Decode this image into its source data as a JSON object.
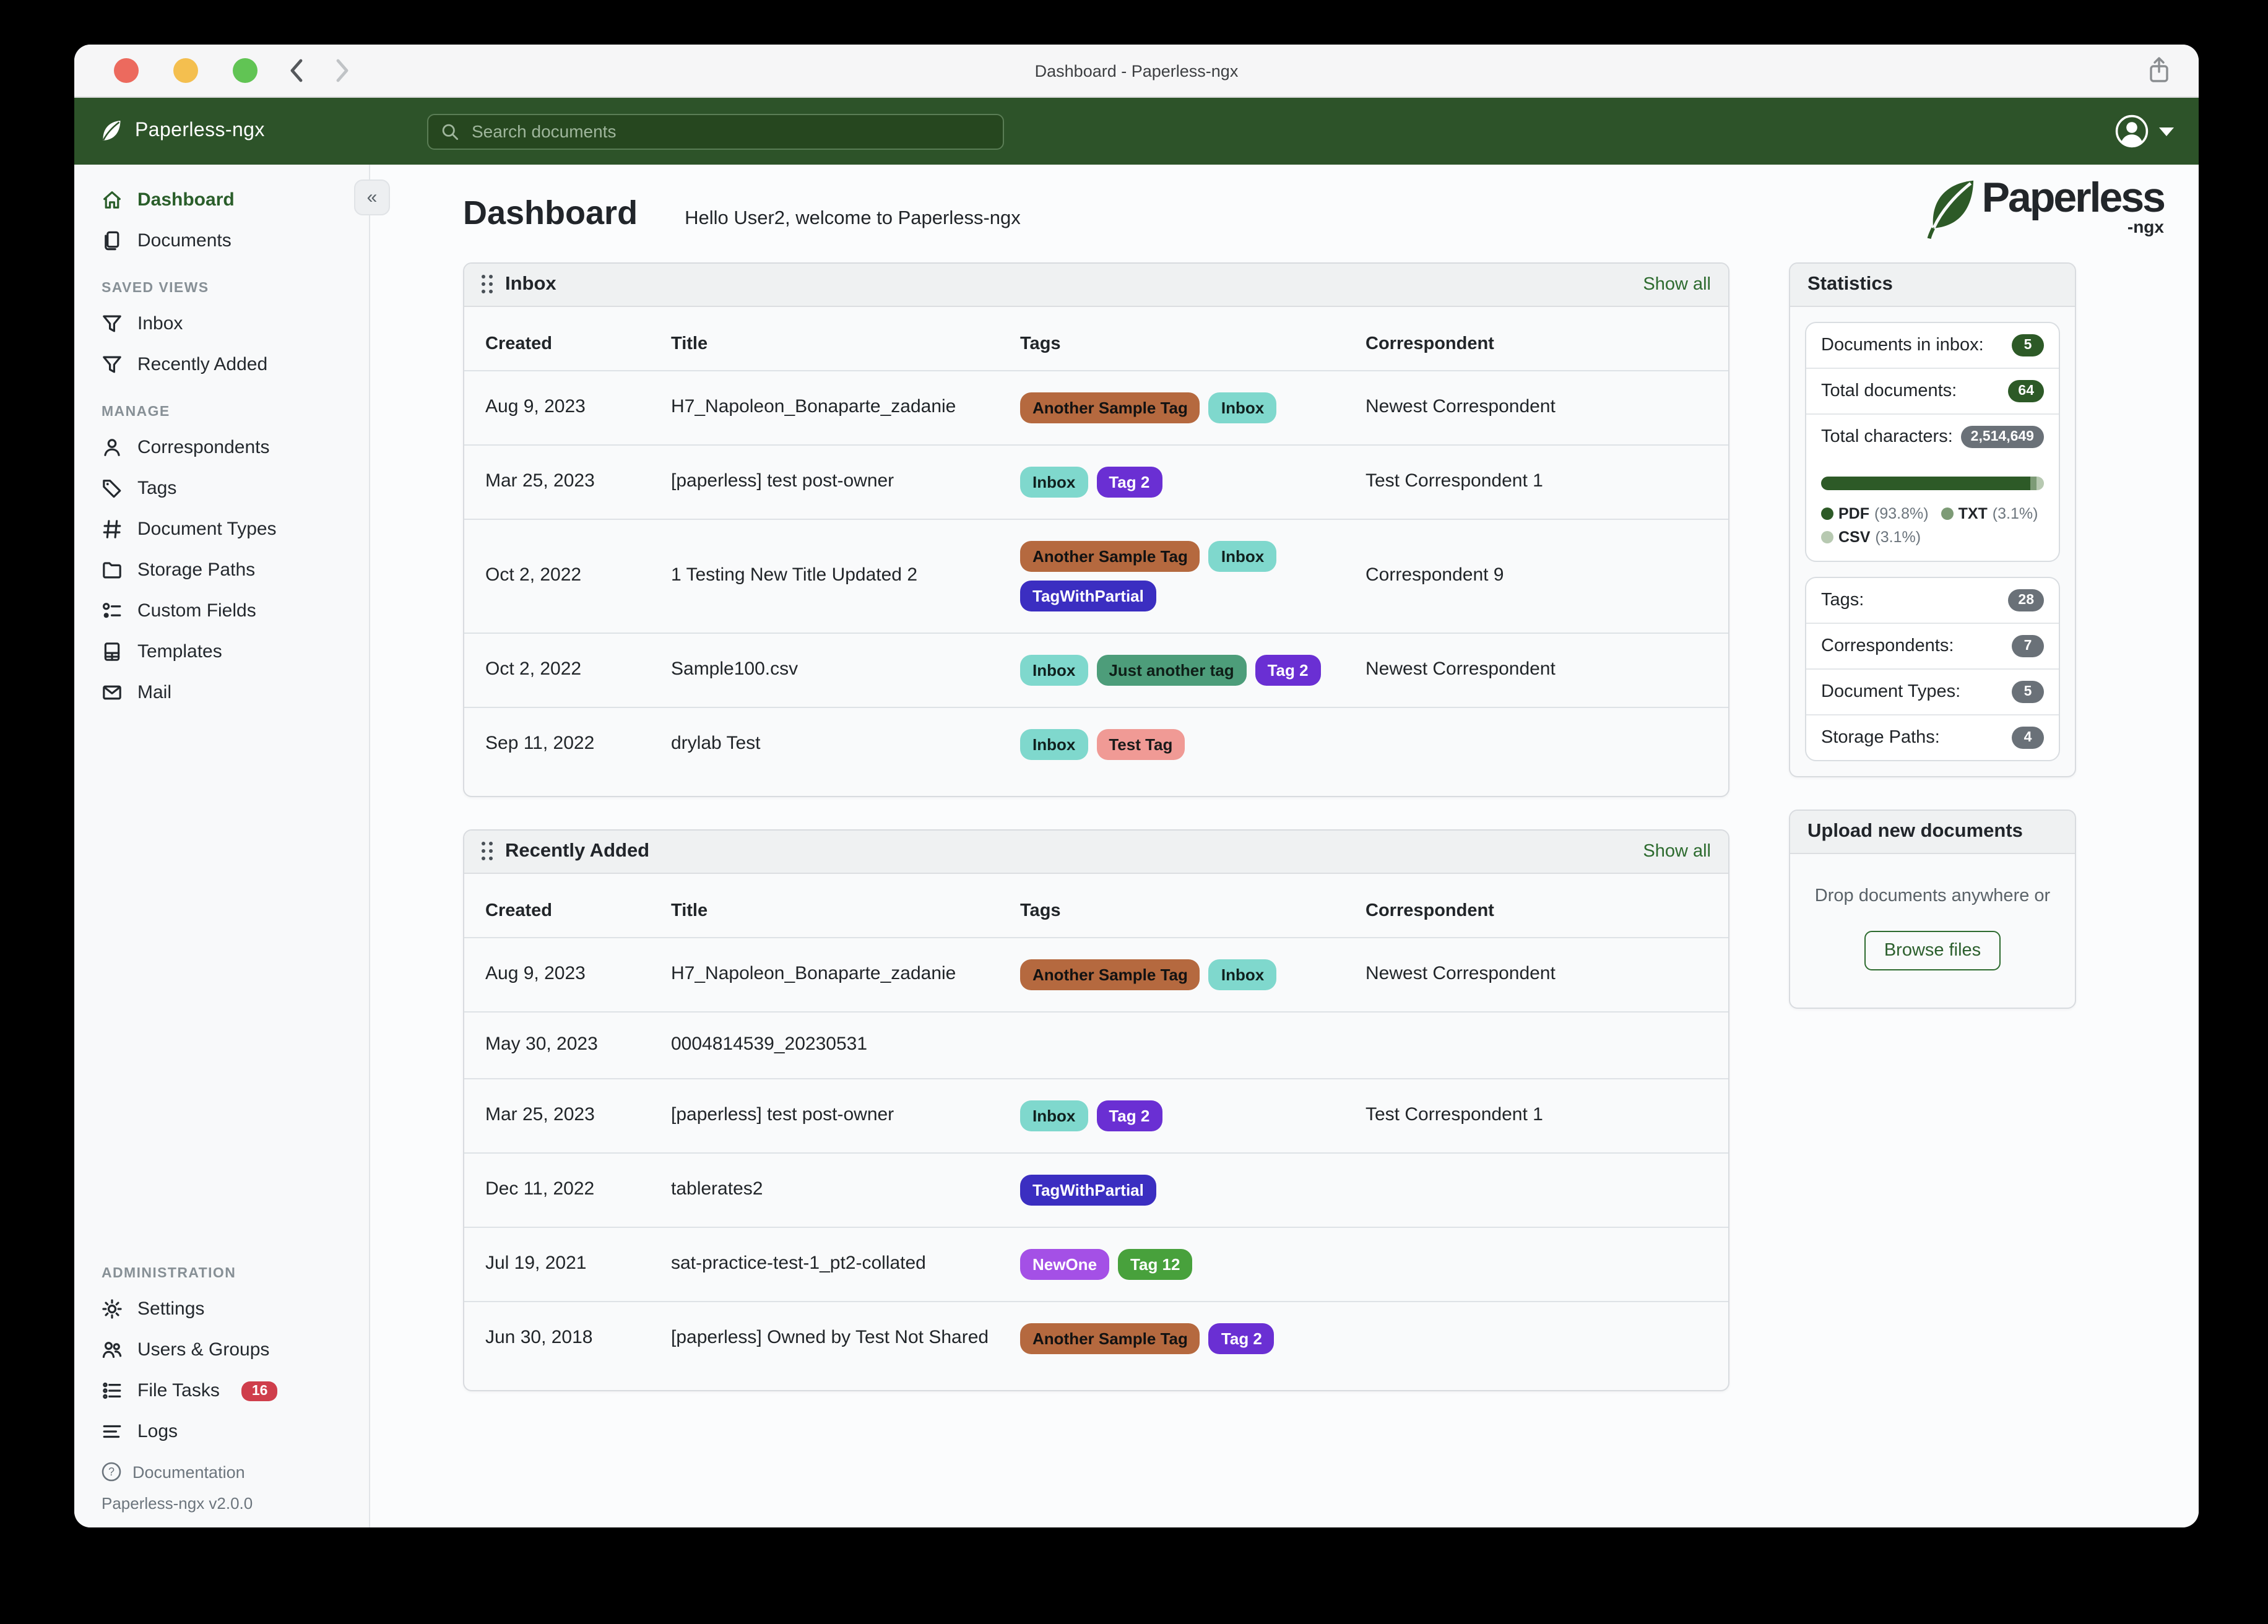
{
  "window": {
    "title": "Dashboard - Paperless-ngx"
  },
  "topbar": {
    "brand": "Paperless-ngx",
    "search_placeholder": "Search documents"
  },
  "sidebar": {
    "sections": [
      {
        "label": "",
        "items": [
          {
            "label": "Dashboard",
            "icon": "home",
            "active": true
          },
          {
            "label": "Documents",
            "icon": "documents"
          }
        ]
      },
      {
        "label": "SAVED VIEWS",
        "items": [
          {
            "label": "Inbox",
            "icon": "filter"
          },
          {
            "label": "Recently Added",
            "icon": "filter"
          }
        ]
      },
      {
        "label": "MANAGE",
        "items": [
          {
            "label": "Correspondents",
            "icon": "person"
          },
          {
            "label": "Tags",
            "icon": "tag"
          },
          {
            "label": "Document Types",
            "icon": "hash"
          },
          {
            "label": "Storage Paths",
            "icon": "folder"
          },
          {
            "label": "Custom Fields",
            "icon": "fields"
          },
          {
            "label": "Templates",
            "icon": "template"
          },
          {
            "label": "Mail",
            "icon": "mail"
          }
        ]
      },
      {
        "label": "ADMINISTRATION",
        "push": true,
        "items": [
          {
            "label": "Settings",
            "icon": "gear"
          },
          {
            "label": "Users & Groups",
            "icon": "users"
          },
          {
            "label": "File Tasks",
            "icon": "tasks",
            "badge": "16"
          },
          {
            "label": "Logs",
            "icon": "logs"
          }
        ]
      }
    ],
    "footer": {
      "documentation": "Documentation",
      "version": "Paperless-ngx v2.0.0"
    }
  },
  "main": {
    "page_title": "Dashboard",
    "greeting": "Hello User2, welcome to Paperless-ngx",
    "logo_word": "Paperless",
    "logo_suffix": "-ngx",
    "inbox": {
      "title": "Inbox",
      "show_all": "Show all",
      "columns": [
        "Created",
        "Title",
        "Tags",
        "Correspondent"
      ],
      "rows": [
        {
          "created": "Aug 9, 2023",
          "title": "H7_Napoleon_Bonaparte_zadanie",
          "tags": [
            "Another Sample Tag",
            "Inbox"
          ],
          "correspondent": "Newest Correspondent"
        },
        {
          "created": "Mar 25, 2023",
          "title": "[paperless] test post-owner",
          "tags": [
            "Inbox",
            "Tag 2"
          ],
          "correspondent": "Test Correspondent 1"
        },
        {
          "created": "Oct 2, 2022",
          "title": "1 Testing New Title Updated 2",
          "tags": [
            "Another Sample Tag",
            "Inbox",
            "TagWithPartial"
          ],
          "correspondent": "Correspondent 9"
        },
        {
          "created": "Oct 2, 2022",
          "title": "Sample100.csv",
          "tags": [
            "Inbox",
            "Just another tag",
            "Tag 2"
          ],
          "correspondent": "Newest Correspondent"
        },
        {
          "created": "Sep 11, 2022",
          "title": "drylab Test",
          "tags": [
            "Inbox",
            "Test Tag"
          ],
          "correspondent": ""
        }
      ]
    },
    "recent": {
      "title": "Recently Added",
      "show_all": "Show all",
      "columns": [
        "Created",
        "Title",
        "Tags",
        "Correspondent"
      ],
      "rows": [
        {
          "created": "Aug 9, 2023",
          "title": "H7_Napoleon_Bonaparte_zadanie",
          "tags": [
            "Another Sample Tag",
            "Inbox"
          ],
          "correspondent": "Newest Correspondent"
        },
        {
          "created": "May 30, 2023",
          "title": "0004814539_20230531",
          "tags": [],
          "correspondent": ""
        },
        {
          "created": "Mar 25, 2023",
          "title": "[paperless] test post-owner",
          "tags": [
            "Inbox",
            "Tag 2"
          ],
          "correspondent": "Test Correspondent 1"
        },
        {
          "created": "Dec 11, 2022",
          "title": "tablerates2",
          "tags": [
            "TagWithPartial"
          ],
          "correspondent": ""
        },
        {
          "created": "Jul 19, 2021",
          "title": "sat-practice-test-1_pt2-collated",
          "tags": [
            "NewOne",
            "Tag 12"
          ],
          "correspondent": ""
        },
        {
          "created": "Jun 30, 2018",
          "title": "[paperless] Owned by Test Not Shared",
          "tags": [
            "Another Sample Tag",
            "Tag 2"
          ],
          "correspondent": ""
        }
      ]
    }
  },
  "tag_colors": {
    "Another Sample Tag": {
      "bg": "#b5693f",
      "fg": "#121212"
    },
    "Inbox": {
      "bg": "#7fd8cd",
      "fg": "#10211f"
    },
    "Tag 2": {
      "bg": "#6a2fd3",
      "fg": "#ffffff"
    },
    "TagWithPartial": {
      "bg": "#3b2ec1",
      "fg": "#ffffff"
    },
    "Just another tag": {
      "bg": "#4d9d7a",
      "fg": "#0f1f18"
    },
    "Test Tag": {
      "bg": "#f09a95",
      "fg": "#1a1a1a"
    },
    "NewOne": {
      "bg": "#a450e6",
      "fg": "#ffffff"
    },
    "Tag 12": {
      "bg": "#48a13c",
      "fg": "#ffffff"
    }
  },
  "statistics": {
    "title": "Statistics",
    "rows": [
      {
        "label": "Documents in inbox:",
        "value": "5",
        "variant": "green"
      },
      {
        "label": "Total documents:",
        "value": "64",
        "variant": "green"
      },
      {
        "label": "Total characters:",
        "value": "2,514,649",
        "variant": "gray"
      }
    ],
    "file_types": [
      {
        "name": "PDF",
        "pct": 93.8,
        "pct_label": "(93.8%)",
        "color": "#2d5a27"
      },
      {
        "name": "TXT",
        "pct": 3.1,
        "pct_label": "(3.1%)",
        "color": "#7d9b76"
      },
      {
        "name": "CSV",
        "pct": 3.1,
        "pct_label": "(3.1%)",
        "color": "#b7c9b1"
      }
    ],
    "counts": [
      {
        "label": "Tags:",
        "value": "28",
        "variant": "gray"
      },
      {
        "label": "Correspondents:",
        "value": "7",
        "variant": "gray"
      },
      {
        "label": "Document Types:",
        "value": "5",
        "variant": "gray"
      },
      {
        "label": "Storage Paths:",
        "value": "4",
        "variant": "gray"
      }
    ]
  },
  "upload": {
    "title": "Upload new documents",
    "hint": "Drop documents anywhere or",
    "button": "Browse files"
  }
}
